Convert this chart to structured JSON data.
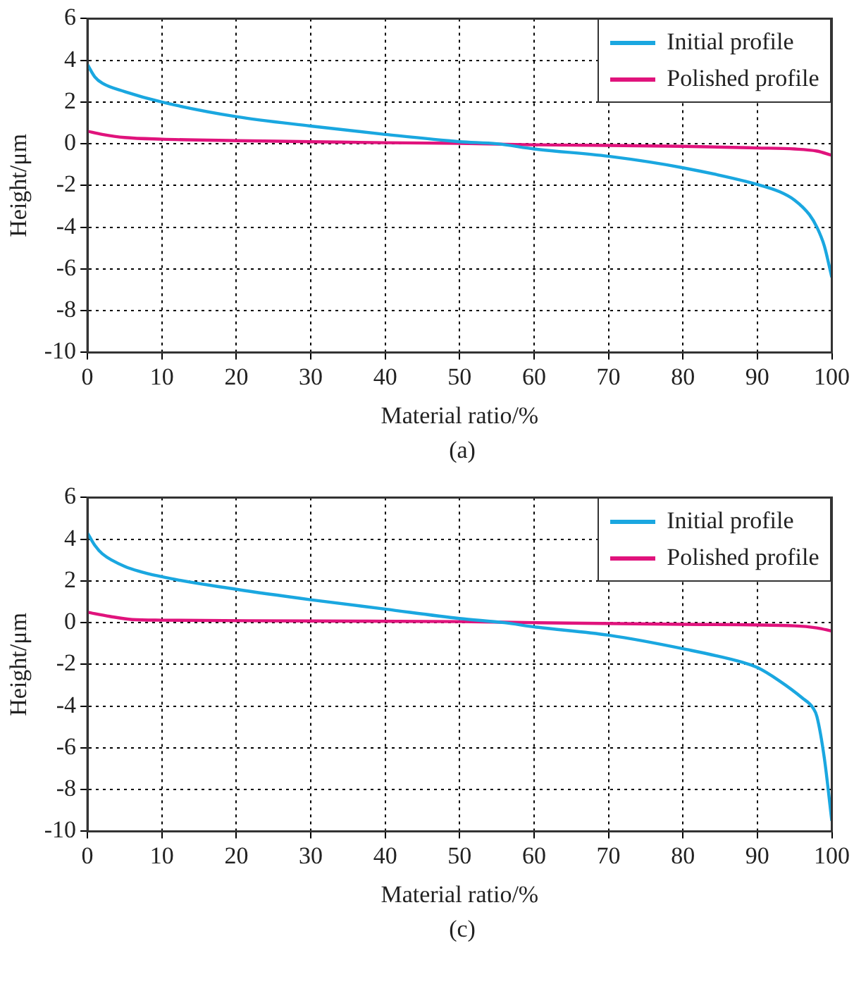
{
  "chart_data": [
    {
      "type": "line",
      "xlabel": "Material ratio/%",
      "ylabel": "Height/μm",
      "annotations": [
        "(a)"
      ],
      "xlim": [
        0,
        100
      ],
      "ylim": [
        -10,
        6
      ],
      "xticks": [
        0,
        10,
        20,
        30,
        40,
        50,
        60,
        70,
        80,
        90,
        100
      ],
      "yticks": [
        -10,
        -8,
        -6,
        -4,
        -2,
        0,
        2,
        4,
        6
      ],
      "grid": true,
      "legend": "top right",
      "series": [
        {
          "name": "Initial profile",
          "color": "#1aa7e0",
          "x": [
            0,
            1,
            2,
            5,
            10,
            20,
            30,
            40,
            50,
            55,
            60,
            70,
            80,
            90,
            93,
            95,
            97,
            98,
            99,
            100
          ],
          "values": [
            3.8,
            3.2,
            2.9,
            2.5,
            2.0,
            1.3,
            0.85,
            0.45,
            0.1,
            0,
            -0.25,
            -0.6,
            -1.15,
            -1.95,
            -2.3,
            -2.7,
            -3.4,
            -4.0,
            -4.9,
            -6.4
          ]
        },
        {
          "name": "Polished profile",
          "color": "#e0137c",
          "x": [
            0,
            2,
            5,
            10,
            20,
            30,
            40,
            50,
            60,
            70,
            80,
            90,
            95,
            98,
            100
          ],
          "values": [
            0.6,
            0.45,
            0.3,
            0.22,
            0.15,
            0.1,
            0.05,
            0.02,
            -0.05,
            -0.08,
            -0.12,
            -0.2,
            -0.25,
            -0.35,
            -0.55
          ]
        }
      ]
    },
    {
      "type": "line",
      "xlabel": "Material ratio/%",
      "ylabel": "Height/μm",
      "annotations": [
        "(c)"
      ],
      "xlim": [
        0,
        100
      ],
      "ylim": [
        -10,
        6
      ],
      "xticks": [
        0,
        10,
        20,
        30,
        40,
        50,
        60,
        70,
        80,
        90,
        100
      ],
      "yticks": [
        -10,
        -8,
        -6,
        -4,
        -2,
        0,
        2,
        4,
        6
      ],
      "grid": true,
      "legend": "top right",
      "series": [
        {
          "name": "Initial profile",
          "color": "#1aa7e0",
          "x": [
            0,
            1,
            2,
            5,
            10,
            20,
            30,
            40,
            50,
            56,
            60,
            70,
            80,
            88,
            90,
            93,
            96,
            97.5,
            98,
            99,
            100
          ],
          "values": [
            4.3,
            3.7,
            3.3,
            2.7,
            2.2,
            1.6,
            1.1,
            0.65,
            0.2,
            0,
            -0.2,
            -0.6,
            -1.25,
            -1.9,
            -2.15,
            -2.8,
            -3.6,
            -4.1,
            -4.5,
            -6.5,
            -9.5
          ]
        },
        {
          "name": "Polished profile",
          "color": "#e0137c",
          "x": [
            0,
            3,
            6,
            10,
            30,
            50,
            60,
            80,
            95,
            98,
            100
          ],
          "values": [
            0.5,
            0.3,
            0.15,
            0.12,
            0.08,
            0.05,
            0,
            -0.08,
            -0.15,
            -0.25,
            -0.4
          ]
        }
      ]
    }
  ]
}
